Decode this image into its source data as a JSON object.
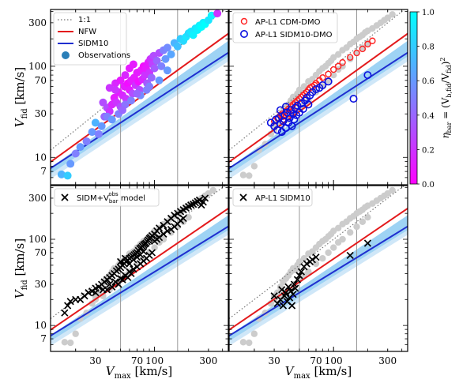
{
  "chart_data": {
    "type": "scatter",
    "xscale": "log",
    "yscale": "log",
    "xlim": [
      12,
      450
    ],
    "ylim": [
      5,
      420
    ],
    "grid": false,
    "xtick_labels": [
      "30",
      "70",
      "100",
      "300"
    ],
    "xtick_values": [
      30,
      70,
      100,
      300
    ],
    "ytick_labels": [
      "7",
      "10",
      "30",
      "70",
      "100",
      "300"
    ],
    "ytick_values": [
      7,
      10,
      30,
      70,
      100,
      300
    ],
    "xlabel_main": "V",
    "xlabel_sub": "max",
    "xlabel_unit": " [km/s]",
    "ylabel_main": "V",
    "ylabel_sub": "fid",
    "ylabel_unit": " [km/s]",
    "vlines": [
      50,
      160
    ],
    "colors": {
      "one_to_one": "#777777",
      "nfw": "#e31a1c",
      "sidm": "#1f2fd0",
      "band_outer": "#cfe7f8",
      "band_inner": "#9ed3f4",
      "gray_points": "#cccccc",
      "cdm_points": "#ff2020",
      "sidm_points": "#0a10e0",
      "cross_points": "#000000"
    },
    "reference_lines": {
      "one_to_one": {
        "x": [
          12,
          450
        ],
        "y": [
          12,
          450
        ]
      },
      "nfw": {
        "x": [
          12,
          450
        ],
        "y": [
          8.9,
          228
        ]
      },
      "sidm": {
        "x": [
          12,
          450
        ],
        "y": [
          7.6,
          141
        ]
      },
      "band_upper": {
        "x": [
          12,
          450
        ],
        "y": [
          7.7,
          190
        ]
      },
      "band_lower": {
        "x": [
          12,
          450
        ],
        "y": [
          5.8,
          113
        ]
      },
      "band_inner_lower": {
        "x": [
          12,
          450
        ],
        "y": [
          6.6,
          128
        ]
      }
    },
    "colorbar": {
      "label": "η_bar = (V_b,fid / V_fid)^2",
      "label_main": "η",
      "label_sub": "bar",
      "label_rest": " = (V",
      "label_sub2": "b,fid",
      "label_rest2": "/V",
      "label_sub3": "fid",
      "label_rest3": ")",
      "label_sup": "2",
      "ticks": [
        "0.0",
        "0.2",
        "0.4",
        "0.6",
        "0.8",
        "1.0"
      ],
      "tick_values": [
        0,
        0.2,
        0.4,
        0.6,
        0.8,
        1.0
      ],
      "colormap": [
        "#ff00ff",
        "#00ffff"
      ]
    },
    "observations": [
      [
        15,
        6.5,
        0.7
      ],
      [
        17,
        6.3,
        0.8
      ],
      [
        18,
        8.5,
        0.6
      ],
      [
        20,
        11,
        0.5
      ],
      [
        22,
        13,
        0.6
      ],
      [
        25,
        15,
        0.5
      ],
      [
        28,
        19,
        0.6
      ],
      [
        30,
        24,
        0.7
      ],
      [
        32,
        18,
        0.5
      ],
      [
        34,
        22,
        0.6
      ],
      [
        36,
        28,
        0.4
      ],
      [
        38,
        35,
        0.3
      ],
      [
        40,
        32,
        0.2
      ],
      [
        42,
        38,
        0.15
      ],
      [
        44,
        45,
        0.1
      ],
      [
        46,
        40,
        0.2
      ],
      [
        48,
        52,
        0.1
      ],
      [
        50,
        36,
        0.3
      ],
      [
        52,
        48,
        0.15
      ],
      [
        54,
        60,
        0.1
      ],
      [
        56,
        44,
        0.2
      ],
      [
        58,
        65,
        0.05
      ],
      [
        60,
        55,
        0.1
      ],
      [
        62,
        70,
        0.1
      ],
      [
        64,
        50,
        0.3
      ],
      [
        66,
        75,
        0.1
      ],
      [
        68,
        62,
        0.2
      ],
      [
        70,
        85,
        0.1
      ],
      [
        72,
        68,
        0.05
      ],
      [
        74,
        55,
        0.3
      ],
      [
        76,
        90,
        0.1
      ],
      [
        78,
        72,
        0.15
      ],
      [
        80,
        100,
        0.05
      ],
      [
        82,
        80,
        0.2
      ],
      [
        84,
        95,
        0.1
      ],
      [
        86,
        65,
        0.35
      ],
      [
        88,
        110,
        0.1
      ],
      [
        90,
        85,
        0.2
      ],
      [
        92,
        120,
        0.2
      ],
      [
        94,
        75,
        0.4
      ],
      [
        96,
        105,
        0.25
      ],
      [
        98,
        130,
        0.3
      ],
      [
        100,
        95,
        0.35
      ],
      [
        105,
        115,
        0.4
      ],
      [
        110,
        140,
        0.3
      ],
      [
        115,
        100,
        0.5
      ],
      [
        120,
        150,
        0.5
      ],
      [
        125,
        120,
        0.6
      ],
      [
        130,
        160,
        0.55
      ],
      [
        140,
        135,
        0.65
      ],
      [
        150,
        180,
        0.7
      ],
      [
        160,
        165,
        0.75
      ],
      [
        170,
        200,
        0.8
      ],
      [
        180,
        190,
        0.85
      ],
      [
        190,
        210,
        0.9
      ],
      [
        200,
        230,
        0.85
      ],
      [
        210,
        240,
        0.9
      ],
      [
        220,
        220,
        0.95
      ],
      [
        230,
        260,
        0.9
      ],
      [
        240,
        250,
        0.95
      ],
      [
        250,
        280,
        0.95
      ],
      [
        260,
        270,
        1.0
      ],
      [
        270,
        300,
        0.95
      ],
      [
        280,
        290,
        1.0
      ],
      [
        300,
        320,
        0.9
      ],
      [
        320,
        360,
        0.95
      ],
      [
        360,
        380,
        0.2
      ],
      [
        40,
        58,
        0.2
      ],
      [
        45,
        65,
        0.15
      ],
      [
        55,
        80,
        0.15
      ],
      [
        60,
        95,
        0.1
      ],
      [
        65,
        105,
        0.1
      ],
      [
        50,
        70,
        0.1
      ],
      [
        45,
        55,
        0.2
      ],
      [
        35,
        40,
        0.3
      ],
      [
        38,
        28,
        0.5
      ],
      [
        42,
        26,
        0.6
      ],
      [
        48,
        30,
        0.5
      ],
      [
        55,
        38,
        0.45
      ],
      [
        62,
        42,
        0.5
      ],
      [
        75,
        48,
        0.55
      ],
      [
        85,
        55,
        0.5
      ],
      [
        52,
        33,
        0.4
      ],
      [
        70,
        50,
        0.4
      ],
      [
        90,
        60,
        0.5
      ],
      [
        110,
        70,
        0.6
      ],
      [
        130,
        90,
        0.6
      ]
    ],
    "gray_points": [
      [
        16,
        6.4
      ],
      [
        18,
        6.3
      ],
      [
        20,
        8
      ],
      [
        22,
        12
      ],
      [
        25,
        14
      ],
      [
        28,
        18
      ],
      [
        30,
        22
      ],
      [
        32,
        24
      ],
      [
        34,
        28
      ],
      [
        36,
        32
      ],
      [
        38,
        35
      ],
      [
        40,
        38
      ],
      [
        42,
        42
      ],
      [
        44,
        46
      ],
      [
        46,
        44
      ],
      [
        48,
        50
      ],
      [
        50,
        55
      ],
      [
        55,
        60
      ],
      [
        60,
        68
      ],
      [
        65,
        72
      ],
      [
        70,
        80
      ],
      [
        75,
        88
      ],
      [
        80,
        95
      ],
      [
        85,
        100
      ],
      [
        90,
        108
      ],
      [
        95,
        115
      ],
      [
        100,
        125
      ],
      [
        110,
        135
      ],
      [
        120,
        150
      ],
      [
        130,
        160
      ],
      [
        140,
        175
      ],
      [
        150,
        185
      ],
      [
        160,
        200
      ],
      [
        170,
        210
      ],
      [
        180,
        220
      ],
      [
        190,
        235
      ],
      [
        200,
        245
      ],
      [
        220,
        260
      ],
      [
        240,
        280
      ],
      [
        260,
        300
      ],
      [
        280,
        320
      ],
      [
        300,
        340
      ],
      [
        330,
        370
      ],
      [
        45,
        30
      ],
      [
        50,
        34
      ],
      [
        55,
        38
      ],
      [
        60,
        42
      ],
      [
        70,
        52
      ],
      [
        80,
        60
      ],
      [
        90,
        70
      ],
      [
        100,
        80
      ],
      [
        110,
        92
      ],
      [
        120,
        100
      ],
      [
        140,
        120
      ],
      [
        160,
        140
      ],
      [
        180,
        160
      ],
      [
        200,
        180
      ],
      [
        35,
        22
      ],
      [
        40,
        26
      ],
      [
        30,
        20
      ]
    ],
    "cdm_dmo": [
      [
        30,
        25
      ],
      [
        32,
        27
      ],
      [
        34,
        29
      ],
      [
        35,
        30
      ],
      [
        36,
        28
      ],
      [
        38,
        32
      ],
      [
        40,
        34
      ],
      [
        42,
        36
      ],
      [
        44,
        38
      ],
      [
        46,
        40
      ],
      [
        48,
        42
      ],
      [
        50,
        44
      ],
      [
        52,
        46
      ],
      [
        54,
        48
      ],
      [
        56,
        50
      ],
      [
        58,
        52
      ],
      [
        60,
        55
      ],
      [
        62,
        58
      ],
      [
        65,
        60
      ],
      [
        68,
        62
      ],
      [
        70,
        65
      ],
      [
        75,
        70
      ],
      [
        80,
        75
      ],
      [
        90,
        82
      ],
      [
        100,
        92
      ],
      [
        110,
        100
      ],
      [
        120,
        110
      ],
      [
        140,
        125
      ],
      [
        160,
        140
      ],
      [
        180,
        155
      ],
      [
        200,
        175
      ],
      [
        220,
        190
      ],
      [
        36,
        26
      ],
      [
        40,
        30
      ],
      [
        44,
        33
      ]
    ],
    "sidm_dmo": [
      [
        28,
        24
      ],
      [
        30,
        22
      ],
      [
        31,
        26
      ],
      [
        32,
        20
      ],
      [
        33,
        27
      ],
      [
        34,
        23
      ],
      [
        35,
        19
      ],
      [
        36,
        25
      ],
      [
        37,
        29
      ],
      [
        38,
        21
      ],
      [
        39,
        31
      ],
      [
        40,
        24
      ],
      [
        41,
        27
      ],
      [
        42,
        33
      ],
      [
        43,
        22
      ],
      [
        44,
        30
      ],
      [
        45,
        26
      ],
      [
        46,
        35
      ],
      [
        47,
        29
      ],
      [
        48,
        37
      ],
      [
        50,
        31
      ],
      [
        52,
        39
      ],
      [
        54,
        34
      ],
      [
        56,
        42
      ],
      [
        58,
        45
      ],
      [
        60,
        38
      ],
      [
        62,
        48
      ],
      [
        65,
        52
      ],
      [
        70,
        56
      ],
      [
        75,
        58
      ],
      [
        80,
        62
      ],
      [
        90,
        68
      ],
      [
        150,
        44
      ],
      [
        200,
        80
      ],
      [
        34,
        33
      ],
      [
        38,
        36
      ]
    ],
    "sidm_vbar_model": [
      [
        16,
        14
      ],
      [
        17,
        17
      ],
      [
        18,
        19
      ],
      [
        20,
        20
      ],
      [
        22,
        20
      ],
      [
        24,
        22
      ],
      [
        26,
        24
      ],
      [
        28,
        25
      ],
      [
        30,
        27
      ],
      [
        32,
        28
      ],
      [
        34,
        30
      ],
      [
        36,
        32
      ],
      [
        38,
        34
      ],
      [
        40,
        36
      ],
      [
        42,
        38
      ],
      [
        44,
        40
      ],
      [
        46,
        43
      ],
      [
        48,
        45
      ],
      [
        50,
        47
      ],
      [
        52,
        50
      ],
      [
        54,
        52
      ],
      [
        56,
        55
      ],
      [
        58,
        57
      ],
      [
        60,
        60
      ],
      [
        62,
        62
      ],
      [
        64,
        64
      ],
      [
        66,
        66
      ],
      [
        68,
        68
      ],
      [
        70,
        70
      ],
      [
        72,
        74
      ],
      [
        74,
        78
      ],
      [
        76,
        80
      ],
      [
        78,
        83
      ],
      [
        80,
        86
      ],
      [
        82,
        88
      ],
      [
        84,
        90
      ],
      [
        86,
        94
      ],
      [
        88,
        98
      ],
      [
        90,
        102
      ],
      [
        92,
        105
      ],
      [
        95,
        110
      ],
      [
        100,
        115
      ],
      [
        105,
        125
      ],
      [
        110,
        135
      ],
      [
        120,
        145
      ],
      [
        130,
        160
      ],
      [
        140,
        175
      ],
      [
        150,
        190
      ],
      [
        160,
        200
      ],
      [
        170,
        210
      ],
      [
        180,
        220
      ],
      [
        190,
        230
      ],
      [
        200,
        240
      ],
      [
        210,
        250
      ],
      [
        220,
        255
      ],
      [
        230,
        265
      ],
      [
        240,
        275
      ],
      [
        250,
        285
      ],
      [
        260,
        250
      ],
      [
        270,
        270
      ],
      [
        280,
        300
      ],
      [
        45,
        32
      ],
      [
        50,
        35
      ],
      [
        55,
        38
      ],
      [
        60,
        42
      ],
      [
        65,
        45
      ],
      [
        70,
        48
      ],
      [
        75,
        52
      ],
      [
        80,
        56
      ],
      [
        85,
        60
      ],
      [
        90,
        65
      ],
      [
        95,
        70
      ],
      [
        40,
        30
      ],
      [
        35,
        26
      ],
      [
        30,
        24
      ],
      [
        50,
        55
      ],
      [
        55,
        60
      ],
      [
        60,
        52
      ],
      [
        65,
        58
      ],
      [
        70,
        62
      ],
      [
        75,
        66
      ],
      [
        80,
        72
      ],
      [
        62,
        40
      ],
      [
        58,
        36
      ],
      [
        52,
        34
      ],
      [
        48,
        30
      ],
      [
        42,
        28
      ],
      [
        38,
        26
      ],
      [
        100,
        95
      ],
      [
        105,
        100
      ],
      [
        110,
        105
      ],
      [
        120,
        115
      ],
      [
        130,
        125
      ],
      [
        140,
        130
      ],
      [
        150,
        140
      ],
      [
        160,
        150
      ],
      [
        170,
        165
      ],
      [
        180,
        175
      ]
    ],
    "sidm10_hydro": [
      [
        30,
        22
      ],
      [
        32,
        18
      ],
      [
        34,
        20
      ],
      [
        35,
        26
      ],
      [
        36,
        17
      ],
      [
        37,
        22
      ],
      [
        38,
        24
      ],
      [
        39,
        19
      ],
      [
        40,
        28
      ],
      [
        41,
        21
      ],
      [
        42,
        25
      ],
      [
        43,
        17
      ],
      [
        44,
        23
      ],
      [
        45,
        30
      ],
      [
        46,
        27
      ],
      [
        48,
        34
      ],
      [
        50,
        38
      ],
      [
        52,
        42
      ],
      [
        55,
        48
      ],
      [
        58,
        52
      ],
      [
        62,
        55
      ],
      [
        65,
        58
      ],
      [
        70,
        62
      ],
      [
        140,
        65
      ],
      [
        200,
        90
      ]
    ],
    "panels": [
      {
        "id": "top-left",
        "legend": [
          {
            "kind": "dotted",
            "label": "1:1"
          },
          {
            "kind": "line-nfw",
            "label": "NFW"
          },
          {
            "kind": "line-sidm",
            "label": "SIDM10"
          },
          {
            "kind": "circle-obs",
            "label": "Observations"
          }
        ]
      },
      {
        "id": "top-right",
        "legend": [
          {
            "kind": "open-red",
            "label": "AP-L1 CDM-DMO"
          },
          {
            "kind": "open-blue",
            "label": "AP-L1 SIDM10-DMO"
          }
        ]
      },
      {
        "id": "bottom-left",
        "legend": [
          {
            "kind": "cross",
            "label": "SIDM+V",
            "sub": "bar",
            "sup": "obs",
            "rest": " model"
          }
        ]
      },
      {
        "id": "bottom-right",
        "legend": [
          {
            "kind": "cross",
            "label": "AP-L1 SIDM10"
          }
        ]
      }
    ]
  }
}
